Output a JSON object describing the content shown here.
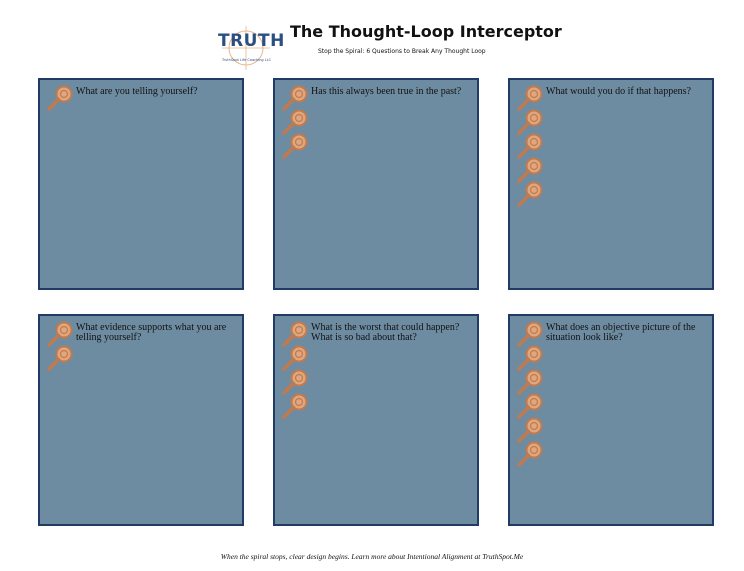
{
  "header": {
    "logo": "TRUTH",
    "logo_caption": "TruthSpot Life Coaching LLC",
    "title": "The Thought-Loop Interceptor",
    "subtitle": "Stop the Spiral: 6 Questions to Break Any Thought Loop"
  },
  "questions": [
    "What are you telling yourself?",
    "Has this always been true in the past?",
    "What would you do if that happens?",
    "What evidence supports what you are telling yourself?",
    "What is the worst that could happen? What is so bad about that?",
    "What does an objective picture of the situation look like?"
  ],
  "footer": "When the spiral stops, clear design begins. Learn more about Intentional Alignment at TruthSpot.Me"
}
